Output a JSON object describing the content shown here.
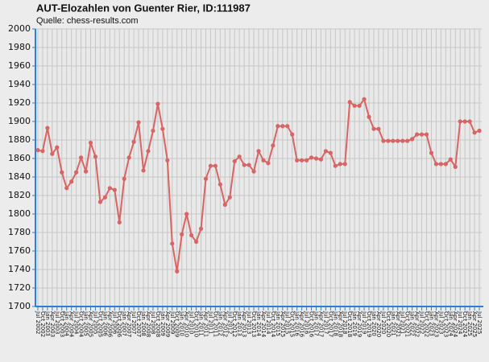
{
  "chart_data": {
    "type": "line",
    "title": "AUT-Elozahlen von Guenter Rier, ID:111987",
    "subtitle": "Quelle: chess-results.com",
    "categories": [
      "Jul 2002",
      "Oct 2002",
      "Jan 2003",
      "Apr 2003",
      "Jul 2003",
      "Oct 2003",
      "Jan 2004",
      "Apr 2004",
      "Jul 2004",
      "Oct 2004",
      "Jan 2005",
      "Apr 2005",
      "Jul 2005",
      "Oct 2005",
      "Jan 2006",
      "Apr 2006",
      "Jul 2006",
      "Oct 2006",
      "Jan 2007",
      "Apr 2007",
      "Jul 2007",
      "Oct 2007",
      "Jan 2008",
      "Apr 2008",
      "Jul 2008",
      "Oct 2008",
      "Jan 2009",
      "Apr 2009",
      "Jul 2009",
      "Oct 2009",
      "Jan 2010",
      "Apr 2010",
      "Jul 2010",
      "Oct 2010",
      "Jan 2011",
      "Apr 2011",
      "Jul 2011",
      "Oct 2011",
      "Jan 2012",
      "Apr 2012",
      "Jul 2012",
      "Oct 2012",
      "Jan 2013",
      "Apr 2013",
      "Jul 2013",
      "Oct 2013",
      "Jan 2014",
      "Apr 2014",
      "Jul 2014",
      "Oct 2014",
      "Jan 2015",
      "Apr 2015",
      "Jul 2015",
      "Oct 2015",
      "Jan 2016",
      "Apr 2016",
      "Jul 2016",
      "Oct 2016",
      "Jan 2017",
      "Apr 2017",
      "Jul 2017",
      "Oct 2017",
      "Jan 2018",
      "Apr 2018",
      "Jul 2018",
      "Oct 2018",
      "Jan 2019",
      "Apr 2019",
      "Jul 2019",
      "Oct 2019",
      "Jan 2020",
      "Apr 2020",
      "Jul 2020",
      "Oct 2020",
      "Jan 2021",
      "Apr 2021",
      "Jul 2021",
      "Oct 2021",
      "Jan 2022",
      "Apr 2022",
      "Jul 2022",
      "Oct 2022",
      "Jan 2023",
      "Apr 2023",
      "Jul 2023",
      "Oct 2023",
      "Jan 2024",
      "Apr 2024",
      "Jul 2024",
      "Oct 2024",
      "Jan 2025",
      "Apr 2025",
      "Jul 2025"
    ],
    "values": [
      1869,
      1868,
      1893,
      1865,
      1872,
      1845,
      1828,
      1835,
      1845,
      1861,
      1846,
      1877,
      1862,
      1813,
      1818,
      1828,
      1826,
      1791,
      1838,
      1861,
      1878,
      1899,
      1847,
      1868,
      1890,
      1919,
      1892,
      1858,
      1768,
      1738,
      1778,
      1800,
      1777,
      1770,
      1784,
      1838,
      1852,
      1852,
      1832,
      1810,
      1818,
      1857,
      1862,
      1853,
      1853,
      1846,
      1868,
      1858,
      1855,
      1874,
      1895,
      1895,
      1895,
      1886,
      1858,
      1858,
      1858,
      1861,
      1860,
      1859,
      1868,
      1866,
      1852,
      1854,
      1854,
      1921,
      1917,
      1917,
      1924,
      1905,
      1892,
      1892,
      1879,
      1879,
      1879,
      1879,
      1879,
      1879,
      1881,
      1886,
      1886,
      1886,
      1866,
      1854,
      1854,
      1854,
      1859,
      1851,
      1900,
      1900,
      1900,
      1888,
      1890
    ],
    "color": "#d86464",
    "ylim": [
      1700,
      2000
    ],
    "yticks": [
      1700,
      1720,
      1740,
      1760,
      1780,
      1800,
      1820,
      1840,
      1860,
      1880,
      1900,
      1920,
      1940,
      1960,
      1980,
      2000
    ],
    "grid": true
  }
}
